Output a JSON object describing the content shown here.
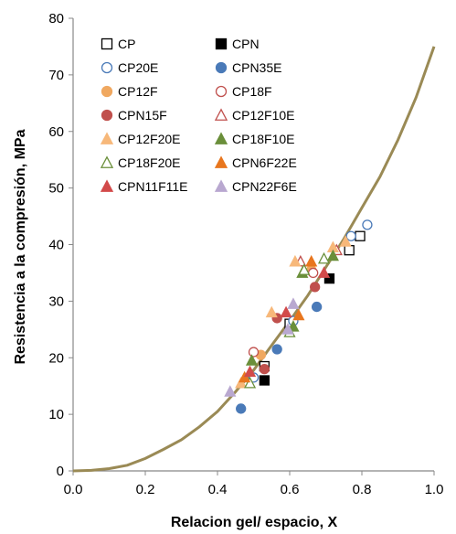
{
  "chart_data": {
    "type": "scatter",
    "title": "",
    "xlabel": "Relacion gel/ espacio, X",
    "ylabel": "Resistencia a la compresión, MPa",
    "xlim": [
      0,
      1
    ],
    "ylim": [
      0,
      80
    ],
    "x_ticks": [
      "0.0",
      "0.2",
      "0.4",
      "0.6",
      "0.8",
      "1.0"
    ],
    "y_ticks": [
      "0",
      "10",
      "20",
      "30",
      "40",
      "50",
      "60",
      "70",
      "80"
    ],
    "grid": false,
    "legend_position": "top-left",
    "curve": {
      "color": "#9a8a55",
      "points": [
        [
          0.0,
          0.0
        ],
        [
          0.05,
          0.1
        ],
        [
          0.1,
          0.4
        ],
        [
          0.15,
          1.0
        ],
        [
          0.2,
          2.2
        ],
        [
          0.25,
          3.8
        ],
        [
          0.3,
          5.5
        ],
        [
          0.35,
          7.8
        ],
        [
          0.4,
          10.5
        ],
        [
          0.45,
          14.0
        ],
        [
          0.5,
          17.8
        ],
        [
          0.55,
          22.2
        ],
        [
          0.6,
          26.5
        ],
        [
          0.65,
          31.0
        ],
        [
          0.7,
          36.0
        ],
        [
          0.75,
          41.0
        ],
        [
          0.8,
          46.5
        ],
        [
          0.85,
          52.0
        ],
        [
          0.9,
          58.5
        ],
        [
          0.95,
          66.0
        ],
        [
          1.0,
          75.0
        ]
      ]
    },
    "series": [
      {
        "name": "CP",
        "marker": "square",
        "filled": false,
        "color": "#000000",
        "points": [
          [
            0.53,
            18.5
          ],
          [
            0.6,
            26.0
          ],
          [
            0.765,
            39.0
          ],
          [
            0.795,
            41.5
          ]
        ]
      },
      {
        "name": "CPN",
        "marker": "square",
        "filled": true,
        "color": "#000000",
        "points": [
          [
            0.53,
            16.0
          ],
          [
            0.71,
            34.0
          ]
        ]
      },
      {
        "name": "CP20E",
        "marker": "circle",
        "filled": false,
        "color": "#4a7ab8",
        "points": [
          [
            0.5,
            16.5
          ],
          [
            0.61,
            26.5
          ],
          [
            0.77,
            41.5
          ],
          [
            0.815,
            43.5
          ]
        ]
      },
      {
        "name": "CPN35E",
        "marker": "circle",
        "filled": true,
        "color": "#4a7ab8",
        "points": [
          [
            0.465,
            11.0
          ],
          [
            0.565,
            21.5
          ],
          [
            0.675,
            29.0
          ]
        ]
      },
      {
        "name": "CP12F",
        "marker": "circle",
        "filled": true,
        "color": "#f0a860",
        "points": [
          [
            0.52,
            20.5
          ],
          [
            0.66,
            35.5
          ]
        ]
      },
      {
        "name": "CP18F",
        "marker": "circle",
        "filled": false,
        "color": "#c0504d",
        "points": [
          [
            0.5,
            21.0
          ],
          [
            0.665,
            35.0
          ]
        ]
      },
      {
        "name": "CPN15F",
        "marker": "circle",
        "filled": true,
        "color": "#c0504d",
        "points": [
          [
            0.53,
            18.0
          ],
          [
            0.565,
            27.0
          ],
          [
            0.67,
            32.5
          ]
        ]
      },
      {
        "name": "CP12F10E",
        "marker": "triangle",
        "filled": false,
        "color": "#c0504d",
        "points": [
          [
            0.63,
            37.0
          ],
          [
            0.73,
            39.0
          ]
        ]
      },
      {
        "name": "CP12F20E",
        "marker": "triangle",
        "filled": true,
        "color": "#f7b87a",
        "points": [
          [
            0.465,
            15.5
          ],
          [
            0.55,
            28.0
          ],
          [
            0.615,
            37.0
          ],
          [
            0.72,
            39.5
          ],
          [
            0.755,
            40.5
          ]
        ]
      },
      {
        "name": "CP18F10E",
        "marker": "triangle",
        "filled": true,
        "color": "#6a8f3a",
        "points": [
          [
            0.495,
            19.5
          ],
          [
            0.61,
            25.5
          ],
          [
            0.635,
            35.0
          ],
          [
            0.72,
            38.0
          ]
        ]
      },
      {
        "name": "CP18F20E",
        "marker": "triangle",
        "filled": false,
        "color": "#6a8f3a",
        "points": [
          [
            0.49,
            15.5
          ],
          [
            0.6,
            24.5
          ],
          [
            0.64,
            35.5
          ],
          [
            0.695,
            37.5
          ]
        ]
      },
      {
        "name": "CPN6F22E",
        "marker": "triangle",
        "filled": true,
        "color": "#e8761e",
        "points": [
          [
            0.475,
            16.5
          ],
          [
            0.625,
            27.5
          ],
          [
            0.66,
            37.0
          ]
        ]
      },
      {
        "name": "CPN11F11E",
        "marker": "triangle",
        "filled": true,
        "color": "#d24a4a",
        "points": [
          [
            0.49,
            17.5
          ],
          [
            0.59,
            28.0
          ],
          [
            0.695,
            35.0
          ]
        ]
      },
      {
        "name": "CPN22F6E",
        "marker": "triangle",
        "filled": true,
        "color": "#b9a8d0",
        "points": [
          [
            0.435,
            14.0
          ],
          [
            0.595,
            25.0
          ],
          [
            0.61,
            29.5
          ]
        ]
      }
    ]
  }
}
